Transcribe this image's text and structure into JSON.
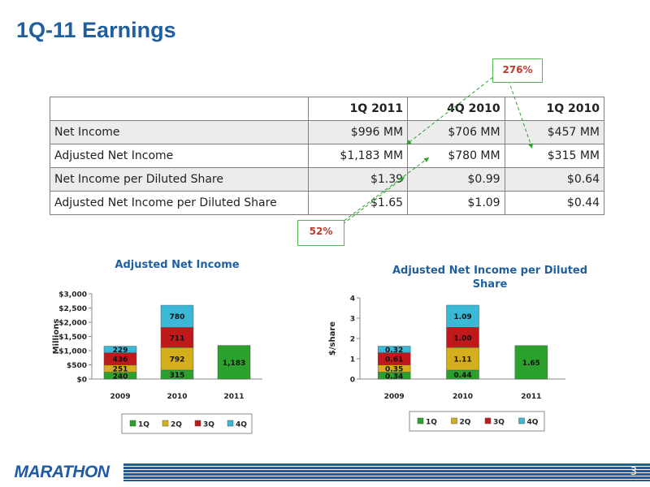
{
  "page": {
    "title": "1Q-11 Earnings",
    "page_number": "3",
    "logo_text": "MARATHON"
  },
  "table": {
    "headers": [
      "",
      "1Q 2011",
      "4Q 2010",
      "1Q 2010"
    ],
    "rows": [
      {
        "label": "Net Income",
        "values": [
          "$996 MM",
          "$706 MM",
          "$457 MM"
        ]
      },
      {
        "label": "Adjusted Net Income",
        "values": [
          "$1,183 MM",
          "$780 MM",
          "$315 MM"
        ]
      },
      {
        "label": "Net Income per Diluted Share",
        "values": [
          "$1.39",
          "$0.99",
          "$0.64"
        ]
      },
      {
        "label": "Adjusted Net Income per Diluted Share",
        "values": [
          "$1.65",
          "$1.09",
          "$0.44"
        ]
      }
    ]
  },
  "callouts": {
    "growth_yoy": "276%",
    "growth_qoq": "52%"
  },
  "colors": {
    "title": "#1f5f9f",
    "q1": "#2ca02c",
    "q2": "#d4ae1c",
    "q3": "#c0191c",
    "q4": "#3bb8d6",
    "callout_text": "#c0392b",
    "callout_border": "#55b855",
    "footer": "#1f5aa6"
  },
  "chart_data": [
    {
      "type": "bar",
      "stacked": true,
      "title": "Adjusted Net Income",
      "ylabel": "Millions",
      "categories": [
        "2009",
        "2010",
        "2011"
      ],
      "ylim": [
        0,
        3000
      ],
      "yticks": [
        "$0",
        "$500",
        "$1,000",
        "$1,500",
        "$2,000",
        "$2,500",
        "$3,000"
      ],
      "legend_position": "bottom",
      "series": [
        {
          "name": "1Q",
          "values": [
            240,
            315,
            1183
          ]
        },
        {
          "name": "2Q",
          "values": [
            251,
            792,
            null
          ]
        },
        {
          "name": "3Q",
          "values": [
            436,
            711,
            null
          ]
        },
        {
          "name": "4Q",
          "values": [
            229,
            780,
            null
          ]
        }
      ]
    },
    {
      "type": "bar",
      "stacked": true,
      "title": "Adjusted Net Income per Diluted Share",
      "ylabel": "$/share",
      "categories": [
        "2009",
        "2010",
        "2011"
      ],
      "ylim": [
        0,
        4
      ],
      "yticks": [
        "0",
        "1",
        "2",
        "3",
        "4"
      ],
      "legend_position": "bottom",
      "series": [
        {
          "name": "1Q",
          "values": [
            0.34,
            0.44,
            1.65
          ]
        },
        {
          "name": "2Q",
          "values": [
            0.35,
            1.11,
            null
          ]
        },
        {
          "name": "3Q",
          "values": [
            0.61,
            1.0,
            null
          ]
        },
        {
          "name": "4Q",
          "values": [
            0.32,
            1.09,
            null
          ]
        }
      ]
    }
  ]
}
